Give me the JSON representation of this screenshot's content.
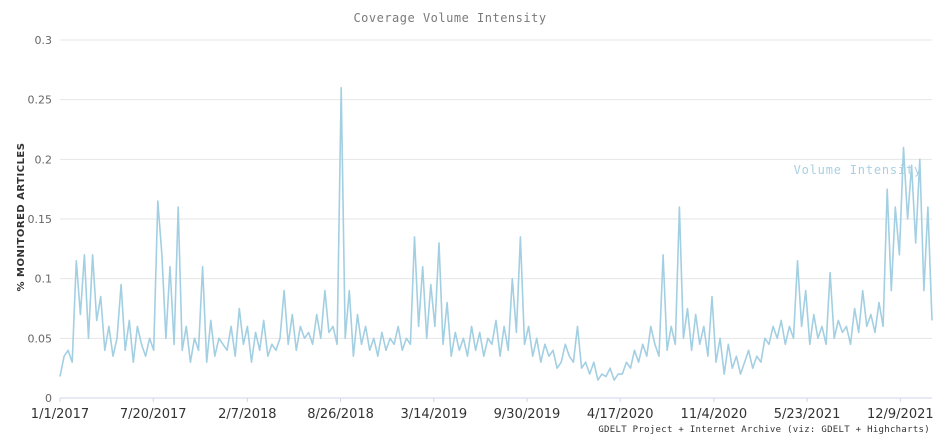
{
  "chart_data": {
    "type": "line",
    "title": "Coverage Volume Intensity",
    "ylabel": "% MONITORED ARTICLES",
    "xlabel": "",
    "ylim": [
      0,
      0.3
    ],
    "yticks": [
      "0",
      "0.05",
      "0.1",
      "0.15",
      "0.2",
      "0.25",
      "0.3"
    ],
    "xticks": [
      "1/1/2017",
      "7/20/2017",
      "2/7/2018",
      "8/26/2018",
      "3/14/2019",
      "9/30/2019",
      "4/17/2020",
      "11/4/2020",
      "5/23/2021",
      "12/9/2021"
    ],
    "x_range": [
      "1/1/2017",
      "2/15/2022"
    ],
    "grid": true,
    "legend": "none",
    "series_color": "#a3cfe2",
    "series": [
      {
        "name": "Volume Intensity",
        "x_start": "1/1/2017",
        "x_end": "2/15/2022",
        "values": [
          0.018,
          0.035,
          0.04,
          0.03,
          0.115,
          0.07,
          0.12,
          0.05,
          0.12,
          0.065,
          0.085,
          0.04,
          0.06,
          0.035,
          0.05,
          0.095,
          0.04,
          0.065,
          0.03,
          0.06,
          0.045,
          0.035,
          0.05,
          0.04,
          0.165,
          0.12,
          0.05,
          0.11,
          0.045,
          0.16,
          0.04,
          0.06,
          0.03,
          0.05,
          0.04,
          0.11,
          0.03,
          0.065,
          0.035,
          0.05,
          0.045,
          0.04,
          0.06,
          0.035,
          0.075,
          0.045,
          0.06,
          0.03,
          0.055,
          0.04,
          0.065,
          0.035,
          0.045,
          0.04,
          0.05,
          0.09,
          0.045,
          0.07,
          0.04,
          0.06,
          0.05,
          0.055,
          0.045,
          0.07,
          0.05,
          0.09,
          0.055,
          0.06,
          0.045,
          0.26,
          0.05,
          0.09,
          0.035,
          0.07,
          0.045,
          0.06,
          0.04,
          0.05,
          0.035,
          0.055,
          0.04,
          0.05,
          0.045,
          0.06,
          0.04,
          0.05,
          0.045,
          0.135,
          0.06,
          0.11,
          0.05,
          0.095,
          0.06,
          0.13,
          0.045,
          0.08,
          0.035,
          0.055,
          0.04,
          0.05,
          0.035,
          0.06,
          0.04,
          0.055,
          0.035,
          0.05,
          0.045,
          0.065,
          0.035,
          0.06,
          0.04,
          0.1,
          0.055,
          0.135,
          0.045,
          0.06,
          0.035,
          0.05,
          0.03,
          0.045,
          0.035,
          0.04,
          0.025,
          0.03,
          0.045,
          0.035,
          0.03,
          0.06,
          0.025,
          0.03,
          0.02,
          0.03,
          0.015,
          0.02,
          0.018,
          0.025,
          0.015,
          0.02,
          0.02,
          0.03,
          0.025,
          0.04,
          0.03,
          0.045,
          0.035,
          0.06,
          0.045,
          0.035,
          0.12,
          0.04,
          0.06,
          0.045,
          0.16,
          0.05,
          0.075,
          0.04,
          0.07,
          0.045,
          0.06,
          0.035,
          0.085,
          0.03,
          0.05,
          0.02,
          0.045,
          0.025,
          0.035,
          0.02,
          0.03,
          0.04,
          0.025,
          0.035,
          0.03,
          0.05,
          0.045,
          0.06,
          0.05,
          0.065,
          0.045,
          0.06,
          0.05,
          0.115,
          0.06,
          0.09,
          0.045,
          0.07,
          0.05,
          0.06,
          0.045,
          0.105,
          0.05,
          0.065,
          0.055,
          0.06,
          0.045,
          0.075,
          0.055,
          0.09,
          0.06,
          0.07,
          0.055,
          0.08,
          0.06,
          0.175,
          0.09,
          0.16,
          0.12,
          0.21,
          0.15,
          0.195,
          0.13,
          0.2,
          0.09,
          0.16,
          0.065
        ]
      }
    ],
    "series_label": "Volume Intensity",
    "credits": "GDELT Project + Internet Archive (viz: GDELT + Highcharts)"
  }
}
